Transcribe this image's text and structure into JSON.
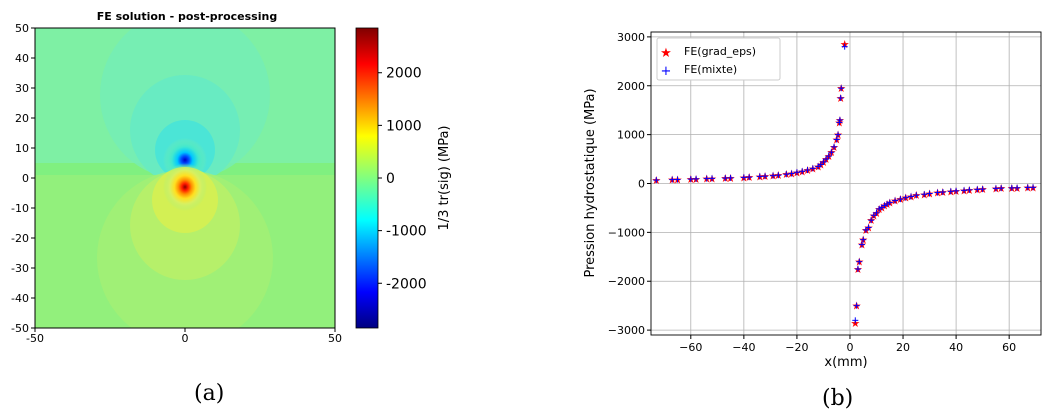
{
  "chart_data": [
    {
      "type": "heatmap",
      "title": "FE solution - post-processing",
      "xlabel": "",
      "ylabel": "",
      "xlim": [
        -50,
        50
      ],
      "ylim": [
        -50,
        50
      ],
      "x_ticks": [
        "-50",
        "0",
        "50"
      ],
      "y_ticks": [
        "50",
        "40",
        "30",
        "20",
        "10",
        "0",
        "-10",
        "-20",
        "-30",
        "-40",
        "-50"
      ],
      "colorbar": {
        "label": "1/3 tr(sig) (MPa)",
        "range": [
          -2850,
          2850
        ],
        "ticks": [
          2000,
          1000,
          0,
          -1000,
          -2000
        ],
        "tick_labels": [
          "2000",
          "1000",
          "0",
          "-1000",
          "-2000"
        ],
        "colormap": "jet"
      },
      "field_description_values": {
        "singularity_center": [
          0,
          0
        ],
        "background_value": 0,
        "max_value": 2850,
        "min_value": -2850
      },
      "caption": "(a)"
    },
    {
      "type": "scatter",
      "xlabel": "x(mm)",
      "ylabel": "Pression hydrostatique (MPa)",
      "xlim": [
        -75,
        72
      ],
      "ylim": [
        -3100,
        3100
      ],
      "x_ticks": [
        -60,
        -40,
        -20,
        0,
        20,
        40,
        60
      ],
      "x_tick_labels": [
        "−60",
        "−40",
        "−20",
        "0",
        "20",
        "40",
        "60"
      ],
      "y_ticks": [
        3000,
        2000,
        1000,
        0,
        -1000,
        -2000,
        -3000
      ],
      "y_tick_labels": [
        "3000",
        "2000",
        "1000",
        "0",
        "−1000",
        "−2000",
        "−3000"
      ],
      "grid": true,
      "legend_position": "top-left",
      "series": [
        {
          "name": "FE(grad_eps)",
          "marker": "star",
          "color": "#ff0000",
          "points": [
            [
              -73,
              70
            ],
            [
              -67,
              80
            ],
            [
              -65,
              82
            ],
            [
              -60,
              90
            ],
            [
              -58,
              95
            ],
            [
              -54,
              100
            ],
            [
              -52,
              105
            ],
            [
              -47,
              110
            ],
            [
              -45,
              115
            ],
            [
              -40,
              125
            ],
            [
              -38,
              130
            ],
            [
              -34,
              145
            ],
            [
              -32,
              150
            ],
            [
              -29,
              160
            ],
            [
              -27,
              170
            ],
            [
              -24,
              190
            ],
            [
              -22,
              205
            ],
            [
              -20,
              230
            ],
            [
              -18,
              250
            ],
            [
              -16,
              275
            ],
            [
              -14,
              310
            ],
            [
              -12,
              350
            ],
            [
              -11,
              390
            ],
            [
              -10,
              440
            ],
            [
              -9,
              500
            ],
            [
              -8,
              560
            ],
            [
              -7,
              640
            ],
            [
              -6,
              750
            ],
            [
              -5,
              900
            ],
            [
              -4.5,
              1000
            ],
            [
              -4,
              1250
            ],
            [
              -3.8,
              1300
            ],
            [
              -3.5,
              1750
            ],
            [
              -3.3,
              1950
            ],
            [
              -2,
              2850
            ],
            [
              2,
              -2850
            ],
            [
              2.5,
              -2500
            ],
            [
              3,
              -1750
            ],
            [
              3.5,
              -1600
            ],
            [
              4.5,
              -1250
            ],
            [
              5,
              -1150
            ],
            [
              6,
              -950
            ],
            [
              7,
              -900
            ],
            [
              8,
              -750
            ],
            [
              9,
              -650
            ],
            [
              10,
              -600
            ],
            [
              11,
              -520
            ],
            [
              12,
              -490
            ],
            [
              13,
              -450
            ],
            [
              14,
              -420
            ],
            [
              15,
              -390
            ],
            [
              17,
              -350
            ],
            [
              19,
              -320
            ],
            [
              21,
              -290
            ],
            [
              23,
              -265
            ],
            [
              25,
              -240
            ],
            [
              28,
              -220
            ],
            [
              30,
              -205
            ],
            [
              33,
              -185
            ],
            [
              35,
              -175
            ],
            [
              38,
              -160
            ],
            [
              40,
              -150
            ],
            [
              43,
              -140
            ],
            [
              45,
              -130
            ],
            [
              48,
              -120
            ],
            [
              50,
              -115
            ],
            [
              55,
              -100
            ],
            [
              57,
              -95
            ],
            [
              61,
              -90
            ],
            [
              63,
              -88
            ],
            [
              67,
              -80
            ],
            [
              69,
              -78
            ]
          ]
        },
        {
          "name": "FE(mixte)",
          "marker": "plus",
          "color": "#0000ff",
          "points": [
            [
              -73,
              70
            ],
            [
              -67,
              80
            ],
            [
              -65,
              82
            ],
            [
              -60,
              90
            ],
            [
              -58,
              95
            ],
            [
              -54,
              100
            ],
            [
              -52,
              105
            ],
            [
              -47,
              110
            ],
            [
              -45,
              115
            ],
            [
              -40,
              125
            ],
            [
              -38,
              130
            ],
            [
              -34,
              145
            ],
            [
              -32,
              150
            ],
            [
              -29,
              160
            ],
            [
              -27,
              170
            ],
            [
              -24,
              190
            ],
            [
              -22,
              205
            ],
            [
              -20,
              230
            ],
            [
              -18,
              250
            ],
            [
              -16,
              275
            ],
            [
              -14,
              310
            ],
            [
              -12,
              350
            ],
            [
              -11,
              390
            ],
            [
              -10,
              440
            ],
            [
              -9,
              500
            ],
            [
              -8,
              560
            ],
            [
              -7,
              640
            ],
            [
              -6,
              750
            ],
            [
              -5,
              900
            ],
            [
              -4.5,
              1000
            ],
            [
              -4,
              1250
            ],
            [
              -3.8,
              1300
            ],
            [
              -3.5,
              1750
            ],
            [
              -3.3,
              1950
            ],
            [
              -2,
              2800
            ],
            [
              2,
              -2800
            ],
            [
              2.5,
              -2500
            ],
            [
              3,
              -1750
            ],
            [
              3.5,
              -1600
            ],
            [
              4.5,
              -1250
            ],
            [
              5,
              -1150
            ],
            [
              6,
              -950
            ],
            [
              7,
              -900
            ],
            [
              8,
              -750
            ],
            [
              9,
              -650
            ],
            [
              10,
              -600
            ],
            [
              11,
              -520
            ],
            [
              12,
              -490
            ],
            [
              13,
              -450
            ],
            [
              14,
              -420
            ],
            [
              15,
              -390
            ],
            [
              17,
              -350
            ],
            [
              19,
              -320
            ],
            [
              21,
              -290
            ],
            [
              23,
              -265
            ],
            [
              25,
              -240
            ],
            [
              28,
              -220
            ],
            [
              30,
              -205
            ],
            [
              33,
              -185
            ],
            [
              35,
              -175
            ],
            [
              38,
              -160
            ],
            [
              40,
              -150
            ],
            [
              43,
              -140
            ],
            [
              45,
              -130
            ],
            [
              48,
              -120
            ],
            [
              50,
              -115
            ],
            [
              55,
              -100
            ],
            [
              57,
              -95
            ],
            [
              61,
              -90
            ],
            [
              63,
              -88
            ],
            [
              67,
              -80
            ],
            [
              69,
              -78
            ]
          ]
        }
      ],
      "caption": "(b)"
    }
  ]
}
